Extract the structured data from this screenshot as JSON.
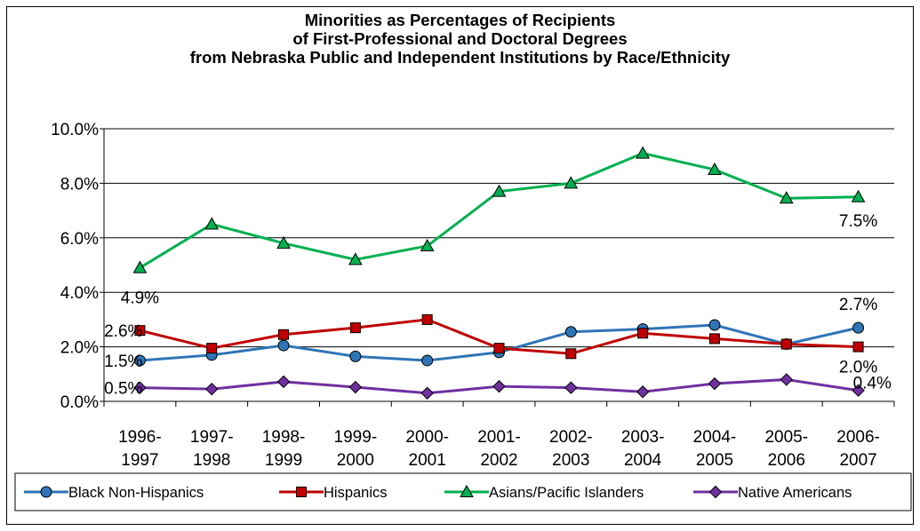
{
  "chart_data": {
    "type": "line",
    "title": [
      "Minorities as Percentages of Recipients",
      "of First-Professional and Doctoral Degrees",
      "from Nebraska Public and Independent Institutions by Race/Ethnicity"
    ],
    "categories": [
      [
        "1996-",
        "1997"
      ],
      [
        "1997-",
        "1998"
      ],
      [
        "1998-",
        "1999"
      ],
      [
        "1999-",
        "2000"
      ],
      [
        "2000-",
        "2001"
      ],
      [
        "2001-",
        "2002"
      ],
      [
        "2002-",
        "2003"
      ],
      [
        "2003-",
        "2004"
      ],
      [
        "2004-",
        "2005"
      ],
      [
        "2005-",
        "2006"
      ],
      [
        "2006-",
        "2007"
      ]
    ],
    "ylim": [
      0,
      10
    ],
    "yticks": [
      "0.0%",
      "2.0%",
      "4.0%",
      "6.0%",
      "8.0%",
      "10.0%"
    ],
    "grid": true,
    "legend": "bottom",
    "series": [
      {
        "name": "Black Non-Hispanics",
        "color": "#2E75B6",
        "marker": "circle",
        "values": [
          1.5,
          1.7,
          2.05,
          1.65,
          1.5,
          1.8,
          2.55,
          2.65,
          2.8,
          2.1,
          2.7
        ],
        "labels": [
          {
            "index": 0,
            "text": "1.5%"
          },
          {
            "index": 10,
            "text": "2.7%"
          }
        ]
      },
      {
        "name": "Hispanics",
        "color": "#C00000",
        "marker": "square",
        "values": [
          2.6,
          1.95,
          2.45,
          2.7,
          3.0,
          1.95,
          1.75,
          2.5,
          2.3,
          2.1,
          2.0
        ],
        "labels": [
          {
            "index": 0,
            "text": "2.6%"
          },
          {
            "index": 10,
            "text": "2.0%"
          }
        ]
      },
      {
        "name": "Asians/Pacific Islanders",
        "color": "#00B050",
        "marker": "triangle",
        "values": [
          4.9,
          6.5,
          5.8,
          5.2,
          5.7,
          7.7,
          8.0,
          9.1,
          8.5,
          7.45,
          7.5
        ],
        "labels": [
          {
            "index": 0,
            "text": "4.9%"
          },
          {
            "index": 10,
            "text": "7.5%"
          }
        ]
      },
      {
        "name": "Native Americans",
        "color": "#7030A0",
        "marker": "diamond",
        "values": [
          0.5,
          0.45,
          0.72,
          0.52,
          0.3,
          0.55,
          0.5,
          0.35,
          0.65,
          0.8,
          0.4
        ],
        "labels": [
          {
            "index": 0,
            "text": "0.5%"
          },
          {
            "index": 10,
            "text": "0.4%"
          }
        ]
      }
    ]
  }
}
